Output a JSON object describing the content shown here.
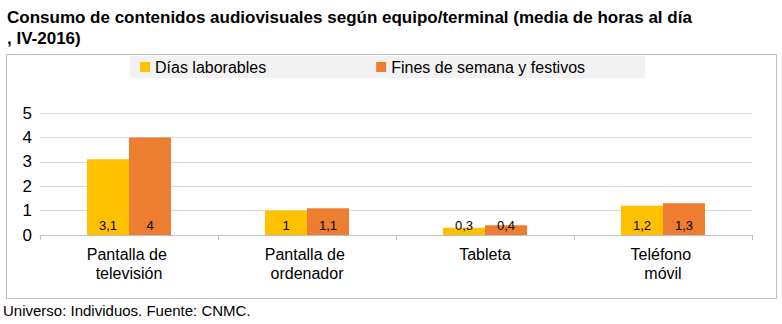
{
  "chart_data": {
    "type": "bar",
    "title": "Consumo de contenidos audiovisuales según equipo/terminal (media de horas al día, IV-2016)",
    "note": "Universo: Individuos. Fuente: CNMC.",
    "categories": [
      "Pantalla de televisión",
      "Pantalla de ordenador",
      "Tableta",
      "Teléfono móvil"
    ],
    "series": [
      {
        "name": "Días laborables",
        "color": "#ffc000",
        "values": [
          3.1,
          1,
          0.3,
          1.2
        ],
        "value_labels": [
          "3,1",
          "1",
          "0,3",
          "1,2"
        ]
      },
      {
        "name": "Fines de semana y festivos",
        "color": "#ed7d31",
        "values": [
          4,
          1.1,
          0.4,
          1.3
        ],
        "value_labels": [
          "4",
          "1,1",
          "0,4",
          "1,3"
        ]
      }
    ],
    "ylim": [
      0,
      5
    ],
    "yticks": [
      0,
      1,
      2,
      3,
      4,
      5
    ],
    "grid": true,
    "legend": "top",
    "data_labels": true
  }
}
